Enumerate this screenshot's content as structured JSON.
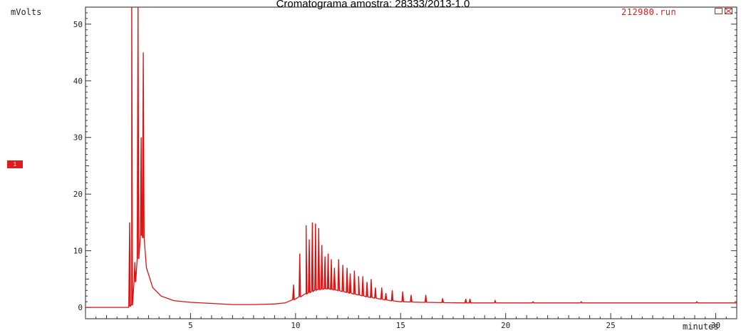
{
  "chart_data": {
    "type": "line",
    "title": "Cromatograma amostra: 28333/2013-1.0",
    "run_name": "212980.run",
    "ylabel": "mVolts",
    "xlabel": "minutes",
    "xlim": [
      0,
      31
    ],
    "ylim": [
      -2,
      53
    ],
    "x_ticks": [
      5,
      10,
      15,
      20,
      25,
      30
    ],
    "y_ticks": [
      0,
      10,
      20,
      30,
      40,
      50
    ],
    "trace_label": "1",
    "series": [
      {
        "color": "#dd1111",
        "baseline": [
          [
            0,
            0
          ],
          [
            2.05,
            0
          ],
          [
            2.2,
            0.4
          ],
          [
            2.7,
            14
          ],
          [
            2.9,
            7
          ],
          [
            3.2,
            3.5
          ],
          [
            3.6,
            2
          ],
          [
            4.2,
            1.2
          ],
          [
            5,
            0.9
          ],
          [
            6,
            0.7
          ],
          [
            7,
            0.5
          ],
          [
            8,
            0.5
          ],
          [
            9,
            0.6
          ],
          [
            9.5,
            0.8
          ],
          [
            10,
            1.5
          ],
          [
            10.5,
            2.4
          ],
          [
            11,
            3.1
          ],
          [
            11.5,
            3.3
          ],
          [
            12,
            3.0
          ],
          [
            12.5,
            2.6
          ],
          [
            13,
            2.2
          ],
          [
            13.5,
            1.8
          ],
          [
            14,
            1.5
          ],
          [
            14.5,
            1.2
          ],
          [
            15,
            1.0
          ],
          [
            16,
            0.9
          ],
          [
            18,
            0.8
          ],
          [
            20,
            0.8
          ],
          [
            25,
            0.8
          ],
          [
            31,
            0.8
          ]
        ],
        "peaks": [
          [
            2.1,
            15
          ],
          [
            2.2,
            53
          ],
          [
            2.35,
            8
          ],
          [
            2.5,
            53
          ],
          [
            2.65,
            30
          ],
          [
            2.75,
            45
          ],
          [
            9.9,
            4
          ],
          [
            10.2,
            9.5
          ],
          [
            10.5,
            14.5
          ],
          [
            10.65,
            12
          ],
          [
            10.8,
            15
          ],
          [
            10.95,
            14.8
          ],
          [
            11.1,
            14
          ],
          [
            11.25,
            11
          ],
          [
            11.4,
            9
          ],
          [
            11.55,
            9.5
          ],
          [
            11.7,
            8.5
          ],
          [
            11.85,
            7
          ],
          [
            12.05,
            8.5
          ],
          [
            12.25,
            7.5
          ],
          [
            12.45,
            7
          ],
          [
            12.6,
            6
          ],
          [
            12.8,
            6.5
          ],
          [
            13.0,
            5.5
          ],
          [
            13.2,
            5.5
          ],
          [
            13.4,
            4.5
          ],
          [
            13.6,
            5
          ],
          [
            13.8,
            3.5
          ],
          [
            14.1,
            3.5
          ],
          [
            14.3,
            2.5
          ],
          [
            14.6,
            3
          ],
          [
            15.1,
            2.8
          ],
          [
            15.5,
            2.2
          ],
          [
            16.2,
            2.2
          ],
          [
            17.0,
            1.6
          ],
          [
            18.1,
            1.5
          ],
          [
            18.3,
            1.5
          ],
          [
            19.5,
            1.2
          ],
          [
            21.3,
            1.0
          ],
          [
            23.6,
            1.0
          ],
          [
            29.1,
            1.0
          ]
        ]
      }
    ]
  }
}
